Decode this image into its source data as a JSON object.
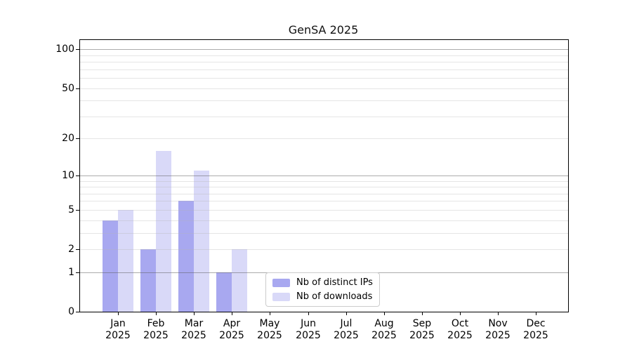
{
  "chart_data": {
    "type": "bar",
    "title": "GenSA 2025",
    "categories": [
      "Jan 2025",
      "Feb 2025",
      "Mar 2025",
      "Apr 2025",
      "May 2025",
      "Jun 2025",
      "Jul 2025",
      "Aug 2025",
      "Sep 2025",
      "Oct 2025",
      "Nov 2025",
      "Dec 2025"
    ],
    "series": [
      {
        "name": "Nb of distinct IPs",
        "color": "#a8a8f0",
        "values": [
          4,
          2,
          6,
          1,
          0,
          0,
          0,
          0,
          0,
          0,
          0,
          0
        ]
      },
      {
        "name": "Nb of downloads",
        "color": "#d9d9f8",
        "values": [
          5,
          16,
          11,
          2,
          0,
          0,
          0,
          0,
          0,
          0,
          0,
          0
        ]
      }
    ],
    "xlabel": "",
    "ylabel": "",
    "y_axis": {
      "scale": "log1p",
      "max": 118,
      "ticks": [
        0,
        1,
        2,
        5,
        10,
        20,
        50,
        100
      ],
      "minor_gridlines": [
        3,
        4,
        6,
        7,
        8,
        9,
        30,
        40,
        60,
        70,
        80,
        90
      ],
      "major_gridlines": [
        1,
        10,
        100
      ],
      "minor_grid_color": "rgba(180,180,180,0.35)",
      "major_grid_color": "rgba(90,90,90,0.5)"
    },
    "grid": true,
    "legend_position": "bottom-center"
  }
}
